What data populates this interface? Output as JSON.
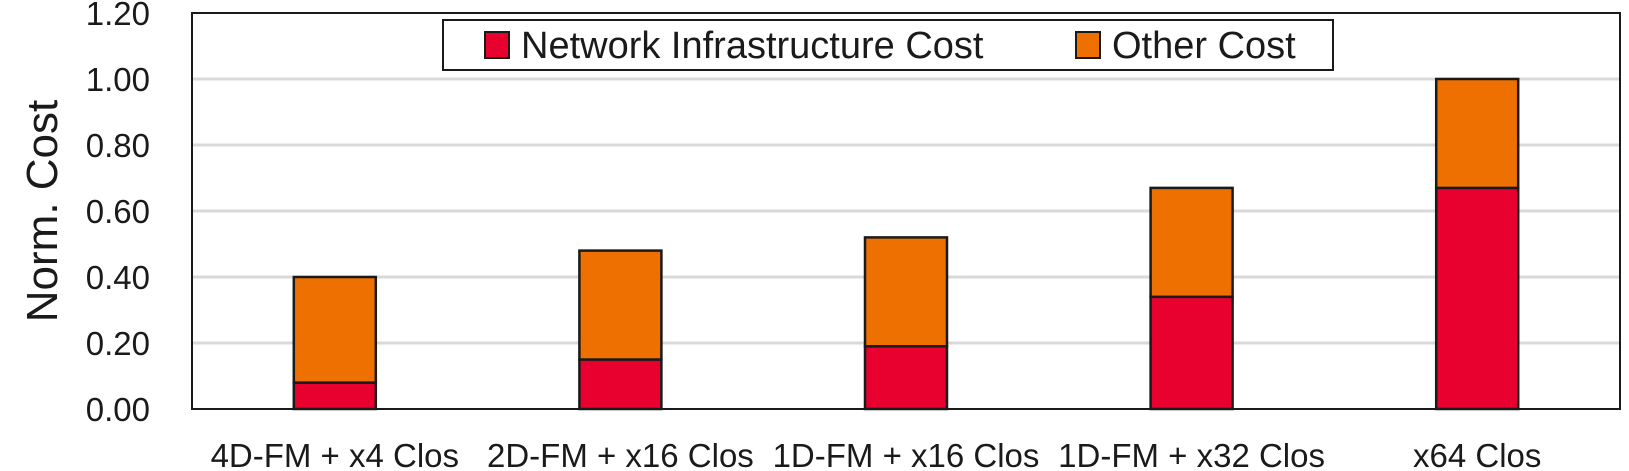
{
  "chart_data": {
    "type": "bar",
    "stacked": true,
    "title": "",
    "xlabel": "",
    "ylabel": "Norm. Cost",
    "ylim": [
      0,
      1.2
    ],
    "yticks": [
      "0.00",
      "0.20",
      "0.40",
      "0.60",
      "0.80",
      "1.00",
      "1.20"
    ],
    "grid": true,
    "legend_position": "top-center",
    "categories": [
      "4D-FM + x4 Clos",
      "2D-FM + x16 Clos",
      "1D-FM + x16 Clos",
      "1D-FM + x32 Clos",
      "x64 Clos"
    ],
    "series": [
      {
        "name": "Network Infrastructure Cost",
        "color": "#E8002F",
        "values": [
          0.08,
          0.15,
          0.19,
          0.34,
          0.67
        ]
      },
      {
        "name": "Other Cost",
        "color": "#ED7000",
        "values": [
          0.32,
          0.33,
          0.33,
          0.33,
          0.33
        ]
      }
    ]
  }
}
